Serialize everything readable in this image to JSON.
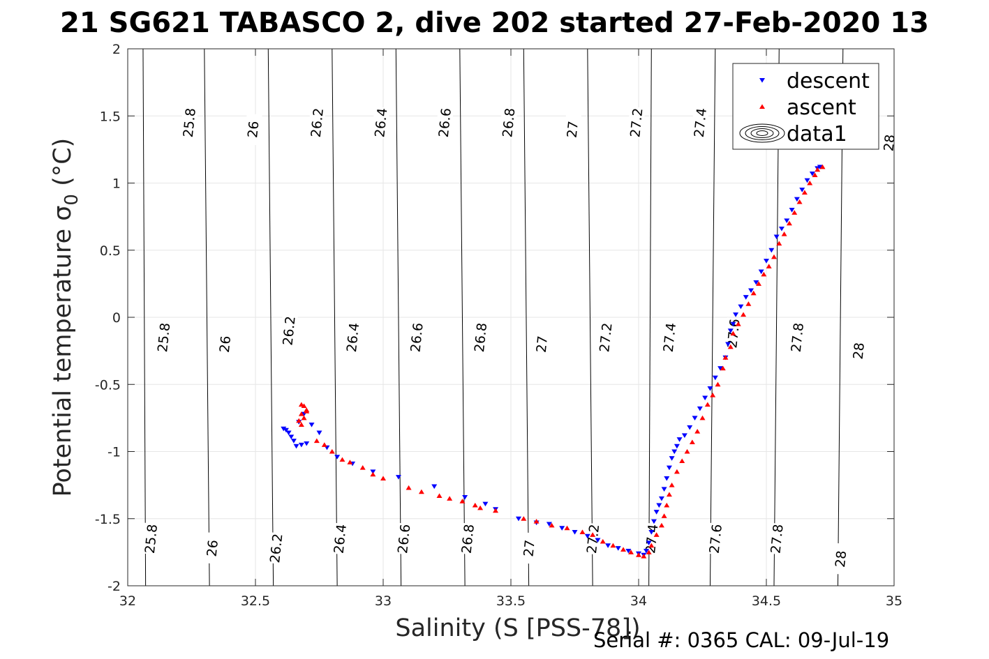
{
  "title": "21 SG621 TABASCO 2, dive 202 started 27-Feb-2020 13",
  "footer": "Serial #: 0365  CAL: 09-Jul-19",
  "chart_data": {
    "type": "scatter",
    "title": "21 SG621 TABASCO 2, dive 202 started 27-Feb-2020 13",
    "xlabel": "Salinity (S [PSS-78])",
    "ylabel": "Potential temperature σ",
    "ylabel_sub": "0",
    "ylabel_unit": " (°C)",
    "xlim": [
      32,
      35
    ],
    "ylim": [
      -2,
      2
    ],
    "xticks": [
      32,
      32.5,
      33,
      33.5,
      34,
      34.5,
      35
    ],
    "xtick_labels": [
      "32",
      "32.5",
      "33",
      "33.5",
      "34",
      "34.5",
      "35"
    ],
    "yticks": [
      -2,
      -1.5,
      -1,
      -0.5,
      0,
      0.5,
      1,
      1.5,
      2
    ],
    "ytick_labels": [
      "-2",
      "-1.5",
      "-1",
      "-0.5",
      "0",
      "0.5",
      "1",
      "1.5",
      "2"
    ],
    "grid": true,
    "legend": "top-right",
    "colors": {
      "descent": "#0000ff",
      "ascent": "#ff0000",
      "contour": "#000000",
      "grid": "#e6e6e6"
    },
    "contours": {
      "levels": [
        25.8,
        26,
        26.2,
        26.4,
        26.6,
        26.8,
        27,
        27.2,
        27.4,
        27.6,
        27.8,
        28
      ],
      "labels": [
        "25.8",
        "26",
        "26.2",
        "26.4",
        "26.6",
        "26.8",
        "27",
        "27.2",
        "27.4",
        "27.6",
        "27.8",
        "28"
      ],
      "s_at_top": [
        32.06,
        32.3,
        32.55,
        32.8,
        33.05,
        33.3,
        33.55,
        33.8,
        34.05,
        34.3,
        34.55,
        34.8
      ],
      "s_at_bottom": [
        32.07,
        32.32,
        32.57,
        32.82,
        33.07,
        33.32,
        33.57,
        33.82,
        34.04,
        34.28,
        34.53,
        34.78
      ],
      "label_positions": [
        [
          [
            32.24,
            1.45
          ],
          [
            32.14,
            -0.15
          ],
          [
            32.09,
            -1.65
          ]
        ],
        [
          [
            32.49,
            1.4
          ],
          [
            32.38,
            -0.2
          ],
          [
            32.33,
            -1.72
          ]
        ],
        [
          [
            32.74,
            1.45
          ],
          [
            32.63,
            -0.1
          ],
          [
            32.58,
            -1.72
          ]
        ],
        [
          [
            32.99,
            1.45
          ],
          [
            32.88,
            -0.15
          ],
          [
            32.83,
            -1.65
          ]
        ],
        [
          [
            33.24,
            1.45
          ],
          [
            33.13,
            -0.15
          ],
          [
            33.08,
            -1.65
          ]
        ],
        [
          [
            33.49,
            1.45
          ],
          [
            33.38,
            -0.15
          ],
          [
            33.33,
            -1.65
          ]
        ],
        [
          [
            33.74,
            1.4
          ],
          [
            33.62,
            -0.2
          ],
          [
            33.57,
            -1.72
          ]
        ],
        [
          [
            33.99,
            1.45
          ],
          [
            33.87,
            -0.15
          ],
          [
            33.82,
            -1.65
          ]
        ],
        [
          [
            34.24,
            1.45
          ],
          [
            34.12,
            -0.15
          ],
          [
            34.05,
            -1.65
          ]
        ],
        [
          [
            34.37,
            -0.12
          ],
          [
            34.3,
            -1.65
          ]
        ],
        [
          [
            34.62,
            -0.15
          ],
          [
            34.54,
            -1.65
          ]
        ],
        [
          [
            34.98,
            1.3
          ],
          [
            34.86,
            -0.25
          ],
          [
            34.79,
            -1.8
          ]
        ]
      ]
    },
    "series": [
      {
        "name": "descent",
        "marker": "triangle-down",
        "points": [
          [
            32.61,
            -0.83
          ],
          [
            32.62,
            -0.84
          ],
          [
            32.63,
            -0.86
          ],
          [
            32.64,
            -0.89
          ],
          [
            32.65,
            -0.92
          ],
          [
            32.66,
            -0.96
          ],
          [
            32.68,
            -0.95
          ],
          [
            32.7,
            -0.94
          ],
          [
            32.67,
            -0.78
          ],
          [
            32.69,
            -0.72
          ],
          [
            32.72,
            -0.8
          ],
          [
            32.75,
            -0.86
          ],
          [
            32.78,
            -0.97
          ],
          [
            32.82,
            -1.04
          ],
          [
            32.88,
            -1.09
          ],
          [
            32.96,
            -1.15
          ],
          [
            33.06,
            -1.19
          ],
          [
            33.2,
            -1.26
          ],
          [
            33.32,
            -1.34
          ],
          [
            33.4,
            -1.39
          ],
          [
            33.44,
            -1.43
          ],
          [
            33.53,
            -1.5
          ],
          [
            33.6,
            -1.53
          ],
          [
            33.65,
            -1.54
          ],
          [
            33.7,
            -1.57
          ],
          [
            33.75,
            -1.6
          ],
          [
            33.8,
            -1.63
          ],
          [
            33.84,
            -1.66
          ],
          [
            33.88,
            -1.7
          ],
          [
            33.92,
            -1.72
          ],
          [
            33.96,
            -1.74
          ],
          [
            34.0,
            -1.76
          ],
          [
            34.02,
            -1.77
          ],
          [
            34.03,
            -1.74
          ],
          [
            34.04,
            -1.68
          ],
          [
            34.05,
            -1.6
          ],
          [
            34.06,
            -1.52
          ],
          [
            34.07,
            -1.45
          ],
          [
            34.08,
            -1.4
          ],
          [
            34.09,
            -1.35
          ],
          [
            34.1,
            -1.28
          ],
          [
            34.11,
            -1.2
          ],
          [
            34.12,
            -1.12
          ],
          [
            34.13,
            -1.05
          ],
          [
            34.14,
            -1.0
          ],
          [
            34.15,
            -0.96
          ],
          [
            34.16,
            -0.91
          ],
          [
            34.18,
            -0.88
          ],
          [
            34.2,
            -0.82
          ],
          [
            34.22,
            -0.75
          ],
          [
            34.24,
            -0.68
          ],
          [
            34.26,
            -0.6
          ],
          [
            34.28,
            -0.53
          ],
          [
            34.3,
            -0.45
          ],
          [
            34.32,
            -0.38
          ],
          [
            34.34,
            -0.3
          ],
          [
            34.35,
            -0.2
          ],
          [
            34.36,
            -0.1
          ],
          [
            34.37,
            -0.05
          ],
          [
            34.38,
            0.02
          ],
          [
            34.4,
            0.08
          ],
          [
            34.42,
            0.15
          ],
          [
            34.44,
            0.2
          ],
          [
            34.46,
            0.26
          ],
          [
            34.48,
            0.34
          ],
          [
            34.5,
            0.42
          ],
          [
            34.52,
            0.5
          ],
          [
            34.54,
            0.6
          ],
          [
            34.56,
            0.66
          ],
          [
            34.58,
            0.72
          ],
          [
            34.6,
            0.8
          ],
          [
            34.62,
            0.88
          ],
          [
            34.64,
            0.95
          ],
          [
            34.66,
            1.02
          ],
          [
            34.68,
            1.07
          ],
          [
            34.7,
            1.11
          ],
          [
            34.71,
            1.12
          ]
        ]
      },
      {
        "name": "ascent",
        "marker": "triangle-up",
        "points": [
          [
            32.68,
            -0.65
          ],
          [
            32.69,
            -0.66
          ],
          [
            32.7,
            -0.69
          ],
          [
            32.68,
            -0.72
          ],
          [
            32.69,
            -0.75
          ],
          [
            32.67,
            -0.77
          ],
          [
            32.7,
            -0.7
          ],
          [
            32.68,
            -0.8
          ],
          [
            32.74,
            -0.92
          ],
          [
            32.77,
            -0.95
          ],
          [
            32.8,
            -1.0
          ],
          [
            32.84,
            -1.06
          ],
          [
            32.87,
            -1.08
          ],
          [
            32.92,
            -1.12
          ],
          [
            32.96,
            -1.17
          ],
          [
            33.0,
            -1.2
          ],
          [
            33.1,
            -1.27
          ],
          [
            33.15,
            -1.3
          ],
          [
            33.22,
            -1.33
          ],
          [
            33.26,
            -1.35
          ],
          [
            33.31,
            -1.37
          ],
          [
            33.36,
            -1.4
          ],
          [
            33.38,
            -1.42
          ],
          [
            33.44,
            -1.44
          ],
          [
            33.55,
            -1.5
          ],
          [
            33.6,
            -1.52
          ],
          [
            33.66,
            -1.55
          ],
          [
            33.72,
            -1.57
          ],
          [
            33.78,
            -1.6
          ],
          [
            33.82,
            -1.62
          ],
          [
            33.86,
            -1.67
          ],
          [
            33.9,
            -1.7
          ],
          [
            33.94,
            -1.73
          ],
          [
            33.97,
            -1.75
          ],
          [
            34.0,
            -1.77
          ],
          [
            34.02,
            -1.78
          ],
          [
            34.04,
            -1.75
          ],
          [
            34.05,
            -1.7
          ],
          [
            34.07,
            -1.62
          ],
          [
            34.09,
            -1.55
          ],
          [
            34.1,
            -1.48
          ],
          [
            34.11,
            -1.4
          ],
          [
            34.12,
            -1.32
          ],
          [
            34.13,
            -1.25
          ],
          [
            34.15,
            -1.15
          ],
          [
            34.17,
            -1.07
          ],
          [
            34.19,
            -1.0
          ],
          [
            34.21,
            -0.93
          ],
          [
            34.23,
            -0.85
          ],
          [
            34.25,
            -0.75
          ],
          [
            34.27,
            -0.65
          ],
          [
            34.29,
            -0.58
          ],
          [
            34.31,
            -0.5
          ],
          [
            34.33,
            -0.38
          ],
          [
            34.34,
            -0.3
          ],
          [
            34.36,
            -0.22
          ],
          [
            34.37,
            -0.12
          ],
          [
            34.39,
            -0.05
          ],
          [
            34.41,
            0.02
          ],
          [
            34.43,
            0.1
          ],
          [
            34.45,
            0.18
          ],
          [
            34.47,
            0.25
          ],
          [
            34.49,
            0.32
          ],
          [
            34.51,
            0.38
          ],
          [
            34.53,
            0.45
          ],
          [
            34.55,
            0.55
          ],
          [
            34.57,
            0.62
          ],
          [
            34.59,
            0.7
          ],
          [
            34.61,
            0.78
          ],
          [
            34.63,
            0.86
          ],
          [
            34.65,
            0.93
          ],
          [
            34.67,
            1.0
          ],
          [
            34.69,
            1.06
          ],
          [
            34.7,
            1.1
          ],
          [
            34.72,
            1.12
          ]
        ]
      }
    ],
    "legend_entries": [
      {
        "label": "descent",
        "marker": "triangle-down",
        "color": "#0000ff"
      },
      {
        "label": "ascent",
        "marker": "triangle-up",
        "color": "#ff0000"
      },
      {
        "label": "data1",
        "marker": "contour",
        "color": "#000000"
      }
    ]
  }
}
